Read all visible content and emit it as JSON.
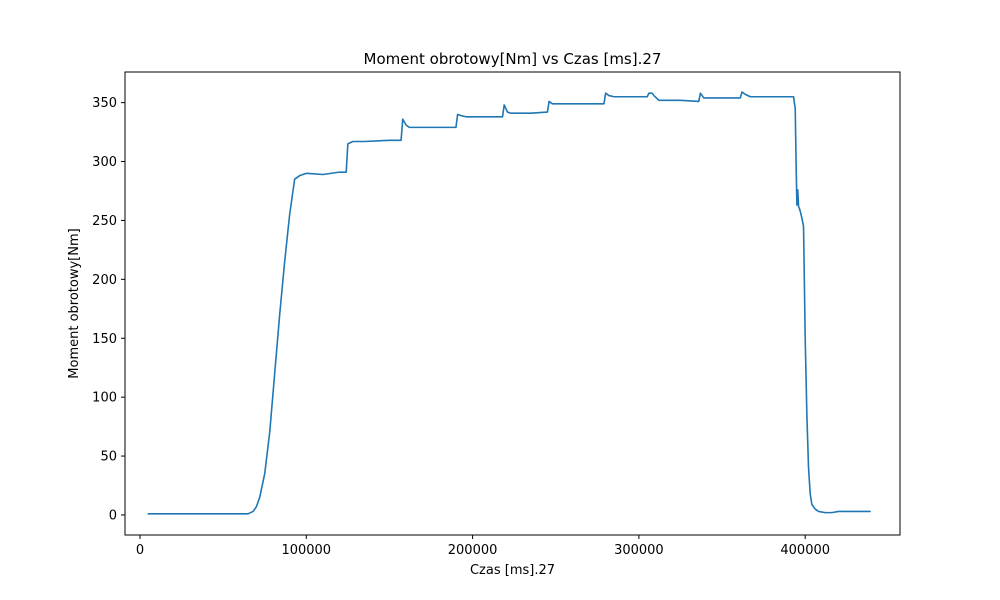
{
  "chart_data": {
    "type": "line",
    "title": "Moment obrotowy[Nm] vs Czas [ms].27",
    "xlabel": "Czas [ms].27",
    "ylabel": "Moment obrotowy[Nm]",
    "xlim": [
      -9000,
      457000
    ],
    "ylim": [
      -17,
      376
    ],
    "x_ticks": [
      0,
      100000,
      200000,
      300000,
      400000
    ],
    "x_tick_labels": [
      "0",
      "100000",
      "200000",
      "300000",
      "400000"
    ],
    "y_ticks": [
      0,
      50,
      100,
      150,
      200,
      250,
      300,
      350
    ],
    "y_tick_labels": [
      "0",
      "50",
      "100",
      "150",
      "200",
      "250",
      "300",
      "350"
    ],
    "grid": false,
    "line_color": "#1f77b4",
    "series": [
      {
        "x": [
          5000,
          15000,
          30000,
          45000,
          60000,
          65000,
          68000,
          70000,
          72000,
          75000,
          78000,
          81000,
          84000,
          87000,
          90000,
          93000,
          96000,
          100000,
          110000,
          120000,
          124000,
          125000,
          128000,
          135000,
          150000,
          157000,
          158000,
          160000,
          162000,
          165000,
          175000,
          190000,
          191000,
          193000,
          196000,
          205000,
          218000,
          219000,
          221000,
          223000,
          235000,
          245000,
          246000,
          248000,
          250000,
          265000,
          279000,
          280000,
          282000,
          285000,
          300000,
          305000,
          306000,
          308000,
          309000,
          312000,
          325000,
          336000,
          337000,
          339000,
          341000,
          350000,
          361000,
          362000,
          364000,
          367000,
          380000,
          393000,
          394000,
          394500,
          395000,
          395500,
          396000,
          397000,
          398000,
          399000,
          400000,
          401000,
          402000,
          403000,
          404000,
          406000,
          408000,
          412000,
          416000,
          420000,
          430000,
          439000
        ],
        "y": [
          1,
          1,
          1,
          1,
          1,
          1,
          3,
          7,
          15,
          35,
          70,
          120,
          170,
          215,
          255,
          285,
          288,
          290,
          289,
          291,
          291,
          315,
          317,
          317,
          318,
          318,
          336,
          331,
          329,
          329,
          329,
          329,
          340,
          339,
          338,
          338,
          338,
          348,
          342,
          341,
          341,
          342,
          351,
          349,
          349,
          349,
          349,
          358,
          356,
          355,
          355,
          355,
          358,
          358,
          356,
          352,
          352,
          351,
          358,
          354,
          354,
          354,
          354,
          359,
          357,
          355,
          355,
          355,
          345,
          300,
          263,
          276,
          262,
          258,
          252,
          245,
          150,
          85,
          40,
          18,
          9,
          5,
          3,
          2,
          2,
          3,
          3,
          3
        ]
      }
    ]
  }
}
